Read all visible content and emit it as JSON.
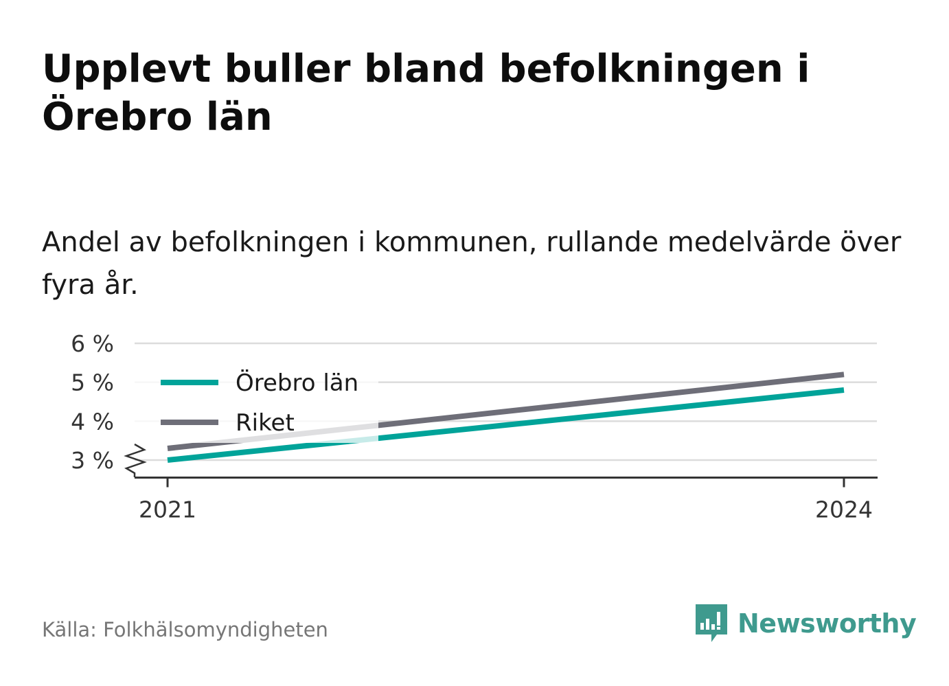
{
  "header": {
    "title": "Upplevt buller bland befolkningen i Örebro län",
    "subtitle": "Andel av befolkningen i kommunen, rullande medelvärde över fyra år."
  },
  "chart_data": {
    "type": "line",
    "x": [
      "2021",
      "2024"
    ],
    "series": [
      {
        "name": "Örebro län",
        "values": [
          3.0,
          4.8
        ],
        "color": "#00a399"
      },
      {
        "name": "Riket",
        "values": [
          3.3,
          5.2
        ],
        "color": "#6e6e78"
      }
    ],
    "y_ticks": [
      3,
      4,
      5,
      6
    ],
    "y_tick_labels": [
      "3 %",
      "4 %",
      "5 %",
      "6 %"
    ],
    "ylim": [
      2.55,
      6
    ],
    "y_axis_break": true,
    "grid": true,
    "legend_position": "top-left",
    "xlabel": "",
    "ylabel": ""
  },
  "footer": {
    "source": "Källa: Folkhälsomyndigheten",
    "brand": "Newsworthy",
    "brand_icon": "bar-chart-speech-bubble-icon",
    "brand_color": "#3f9a8e"
  }
}
